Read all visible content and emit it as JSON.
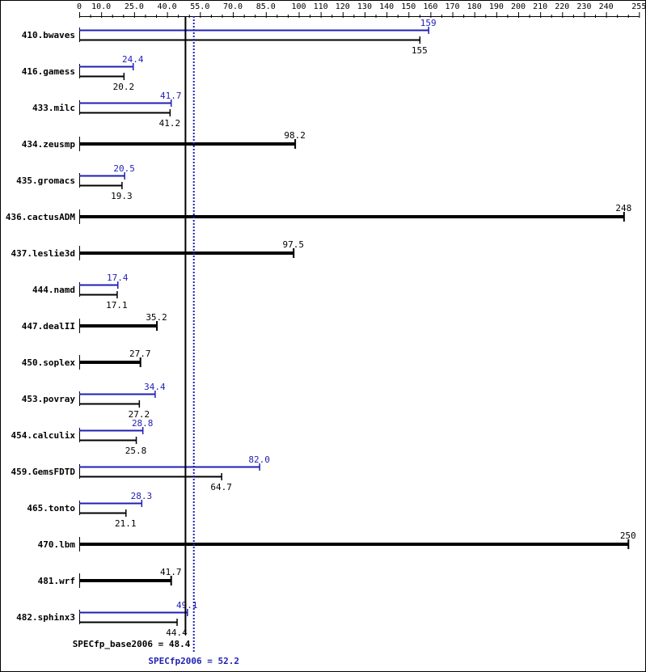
{
  "chart_data": {
    "type": "bar",
    "orientation": "horizontal",
    "xlim": [
      0,
      255
    ],
    "tick_labels": [
      "0",
      "10.0",
      "25.0",
      "40.0",
      "55.0",
      "70.0",
      "85.0",
      "100",
      "110",
      "120",
      "130",
      "140",
      "150",
      "160",
      "170",
      "180",
      "190",
      "200",
      "210",
      "220",
      "230",
      "240",
      "255"
    ],
    "tick_values": [
      0,
      10,
      25,
      40,
      55,
      70,
      85,
      100,
      110,
      120,
      130,
      140,
      150,
      160,
      170,
      180,
      190,
      200,
      210,
      220,
      230,
      240,
      255
    ],
    "categories": [
      "410.bwaves",
      "416.gamess",
      "433.milc",
      "434.zeusmp",
      "435.gromacs",
      "436.cactusADM",
      "437.leslie3d",
      "444.namd",
      "447.dealII",
      "450.soplex",
      "453.povray",
      "454.calculix",
      "459.GemsFDTD",
      "465.tonto",
      "470.lbm",
      "481.wrf",
      "482.sphinx3"
    ],
    "series": [
      {
        "name": "SPECfp_base2006",
        "color": "#000000",
        "values": [
          155,
          20.2,
          41.2,
          98.2,
          19.3,
          248,
          97.5,
          17.1,
          35.2,
          27.7,
          27.2,
          25.8,
          64.7,
          21.1,
          250,
          41.7,
          44.4
        ],
        "labels": [
          "155",
          "20.2",
          "41.2",
          "98.2",
          "19.3",
          "248",
          "97.5",
          "17.1",
          "35.2",
          "27.7",
          "27.2",
          "25.8",
          "64.7",
          "21.1",
          "250",
          "41.7",
          "44.4"
        ]
      },
      {
        "name": "SPECfp2006",
        "color": "#1f1fb4",
        "values": [
          159,
          24.4,
          41.7,
          null,
          20.5,
          null,
          null,
          17.4,
          null,
          null,
          34.4,
          28.8,
          82.0,
          28.3,
          null,
          null,
          49.1
        ],
        "labels": [
          "159",
          "24.4",
          "41.7",
          null,
          "20.5",
          null,
          null,
          "17.4",
          null,
          null,
          "34.4",
          "28.8",
          "82.0",
          "28.3",
          null,
          null,
          "49.1"
        ]
      }
    ],
    "reference_lines": [
      {
        "label": "SPECfp_base2006 = 48.4",
        "value": 48.4,
        "color": "#000000",
        "style": "solid"
      },
      {
        "label": "SPECfp2006 = 52.2",
        "value": 52.2,
        "color": "#1f1fb4",
        "style": "dotted"
      }
    ]
  }
}
